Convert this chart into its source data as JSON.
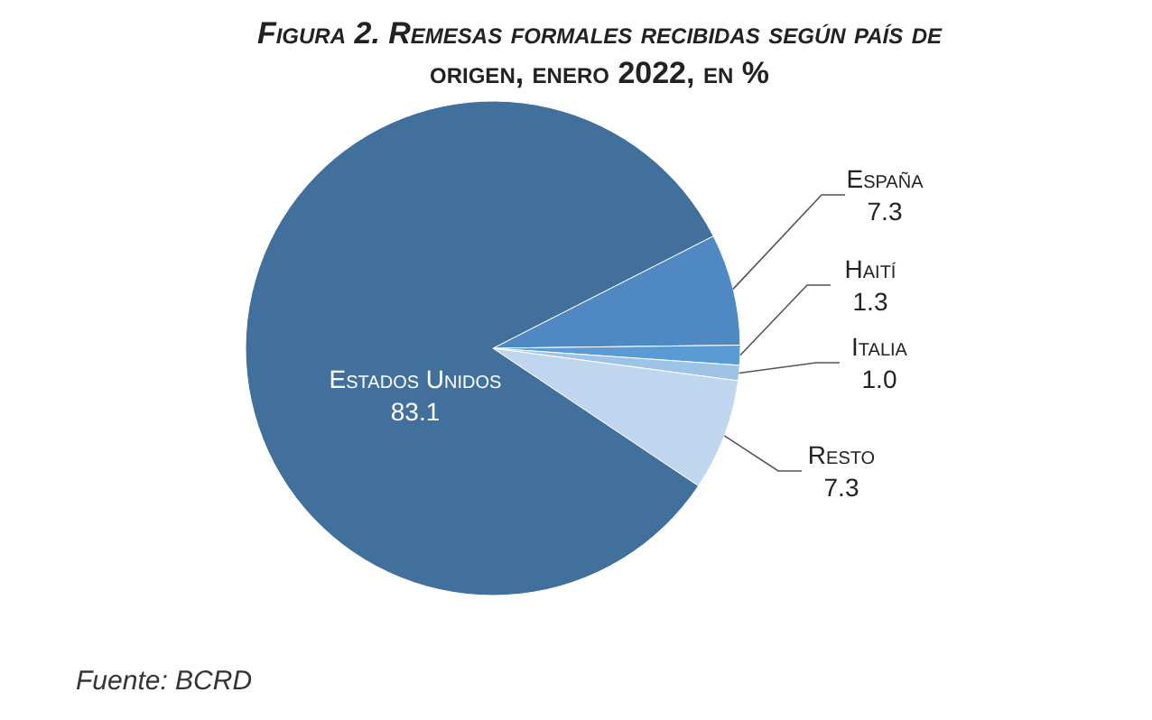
{
  "chart_data": {
    "type": "pie",
    "title": "Figura 2. Remesas formales recibidas según país de origen, enero 2022, en %",
    "categories": [
      "España",
      "Haití",
      "Italia",
      "Resto",
      "Estados Unidos"
    ],
    "values": [
      7.3,
      1.3,
      1.0,
      7.3,
      83.1
    ],
    "value_labels": [
      "7.3",
      "1.3",
      "1.0",
      "7.3",
      "83.1"
    ],
    "colors": [
      "#4f88c2",
      "#5b9bd5",
      "#9dc3e6",
      "#c0d6ee",
      "#41709d"
    ],
    "annotations": [
      "Fuente: BCRD"
    ]
  }
}
